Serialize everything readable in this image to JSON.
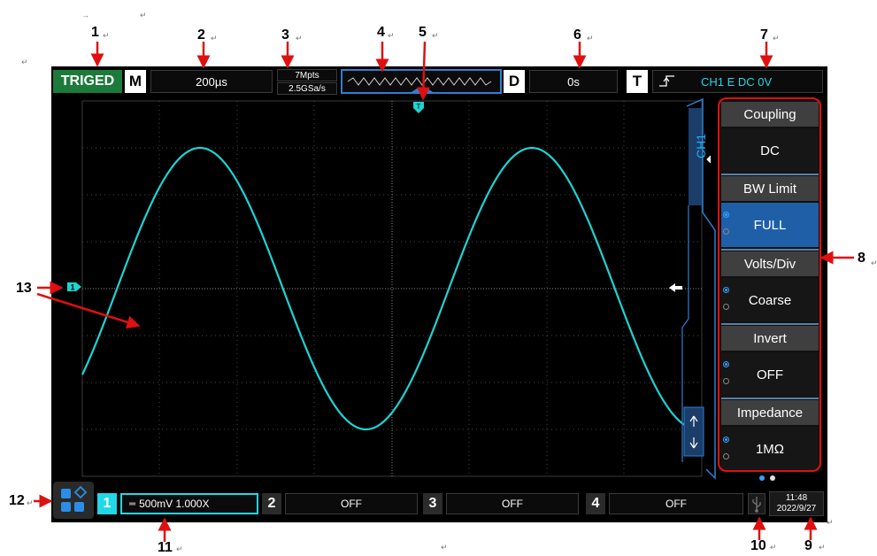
{
  "header": {
    "trig_status": "TRIGED",
    "mode_letter": "M",
    "timebase": "200µs",
    "memory_depth": "7Mpts",
    "sample_rate": "2.5GSa/s",
    "delay_letter": "D",
    "delay": "0s",
    "trigger_letter": "T",
    "trigger_info": "CH1 E DC 0V"
  },
  "menu": {
    "channel_tab": "CH1",
    "sections": [
      {
        "title": "Coupling",
        "value": "DC"
      },
      {
        "title": "BW Limit",
        "value": "FULL"
      },
      {
        "title": "Volts/Div",
        "value": "Coarse"
      },
      {
        "title": "Invert",
        "value": "OFF"
      },
      {
        "title": "Impedance",
        "value": "1MΩ"
      }
    ]
  },
  "channels": [
    {
      "num": "1",
      "text": "500mV 1.000X"
    },
    {
      "num": "2",
      "text": "OFF"
    },
    {
      "num": "3",
      "text": "OFF"
    },
    {
      "num": "4",
      "text": "OFF"
    }
  ],
  "status": {
    "time": "11:48",
    "date": "2022/9/27"
  },
  "markers": {
    "ch1": "1",
    "trigger_pos": "T"
  },
  "callouts": [
    "1",
    "2",
    "3",
    "4",
    "5",
    "6",
    "7",
    "8",
    "9",
    "10",
    "11",
    "12",
    "13"
  ],
  "colors": {
    "trace": "#1fd3d3",
    "accent_blue": "#2f7fd1",
    "trig_green": "#1c7a3a",
    "ch1_cyan": "#20d8e8"
  }
}
